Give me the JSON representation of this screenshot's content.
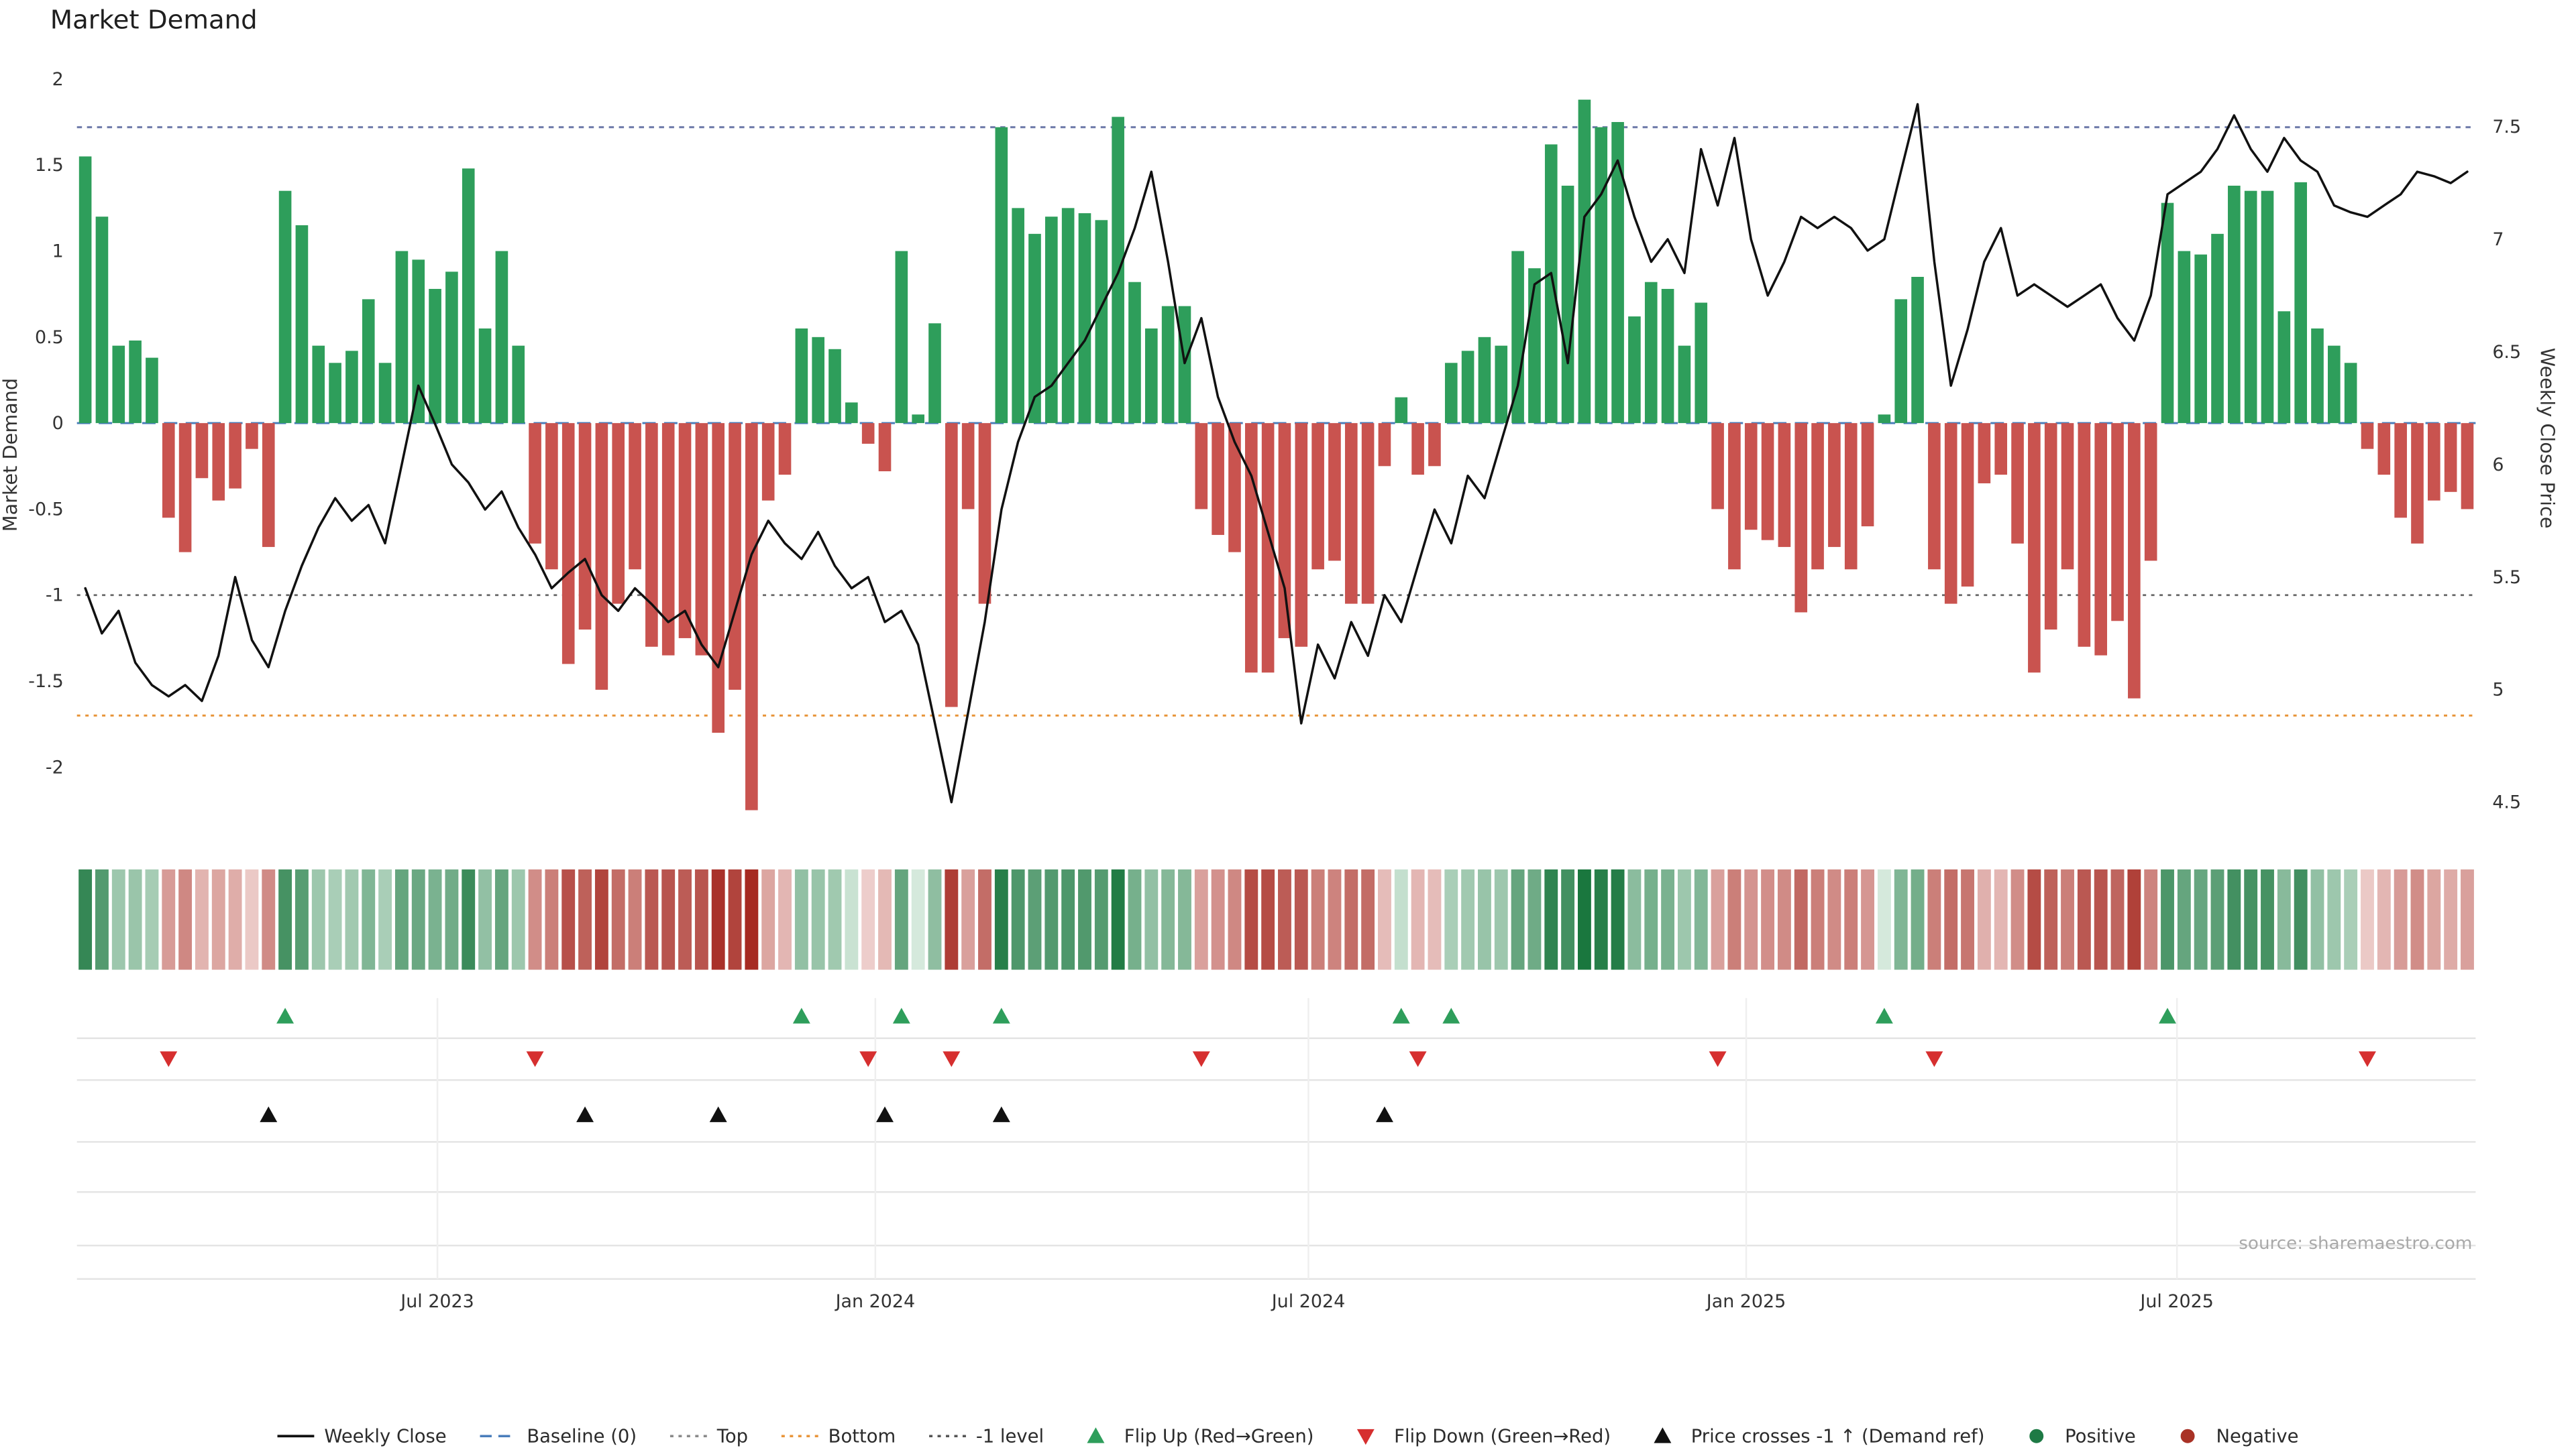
{
  "title": "Market Demand",
  "y_left_label": "Market Demand",
  "y_right_label": "Weekly Close Price",
  "source": "source: sharemaestro.com",
  "axes": {
    "left_ticks": [
      {
        "label": "2",
        "value": 2
      },
      {
        "label": "1.5",
        "value": 1.5
      },
      {
        "label": "1",
        "value": 1
      },
      {
        "label": "0.5",
        "value": 0.5
      },
      {
        "label": "0",
        "value": 0
      },
      {
        "label": "-0.5",
        "value": -0.5
      },
      {
        "label": "-1",
        "value": -1
      },
      {
        "label": "-1.5",
        "value": -1.5
      },
      {
        "label": "-2",
        "value": -2
      }
    ],
    "right_ticks": [
      {
        "label": "7.5",
        "value": 7.5
      },
      {
        "label": "7",
        "value": 7
      },
      {
        "label": "6.5",
        "value": 6.5
      },
      {
        "label": "6",
        "value": 6
      },
      {
        "label": "5.5",
        "value": 5.5
      },
      {
        "label": "5",
        "value": 5
      },
      {
        "label": "4.5",
        "value": 4.5
      }
    ],
    "x_ticks": [
      {
        "label": "Jul 2023",
        "index": 21.14
      },
      {
        "label": "Jan 2024",
        "index": 47.43
      },
      {
        "label": "Jul 2024",
        "index": 73.43
      },
      {
        "label": "Jan 2025",
        "index": 99.71
      },
      {
        "label": "Jul 2025",
        "index": 125.57
      }
    ]
  },
  "chart_data": {
    "type": "bar+line",
    "title": "Market Demand",
    "x_type": "weekly",
    "start_date": "2023-02-03",
    "n_weeks": 144,
    "ylim_left": [
      -2.4,
      2.05
    ],
    "ylim_right": [
      4.35,
      7.75
    ],
    "series": [
      {
        "name": "Market Demand",
        "type": "bar",
        "axis": "left",
        "values": [
          1.55,
          1.2,
          0.45,
          0.48,
          0.38,
          -0.55,
          -0.75,
          -0.32,
          -0.45,
          -0.38,
          -0.15,
          -0.72,
          1.35,
          1.15,
          0.45,
          0.35,
          0.42,
          0.72,
          0.35,
          1.0,
          0.95,
          0.78,
          0.88,
          1.48,
          0.55,
          1.0,
          0.45,
          -0.7,
          -0.85,
          -1.4,
          -1.2,
          -1.55,
          -1.05,
          -0.85,
          -1.3,
          -1.35,
          -1.25,
          -1.35,
          -1.8,
          -1.55,
          -2.25,
          -0.45,
          -0.3,
          0.55,
          0.5,
          0.43,
          0.12,
          -0.12,
          -0.28,
          1.0,
          0.05,
          0.58,
          -1.65,
          -0.5,
          -1.05,
          1.72,
          1.25,
          1.1,
          1.2,
          1.25,
          1.22,
          1.18,
          1.78,
          0.82,
          0.55,
          0.68,
          0.68,
          -0.5,
          -0.65,
          -0.75,
          -1.45,
          -1.45,
          -1.25,
          -1.3,
          -0.85,
          -0.8,
          -1.05,
          -1.05,
          -0.25,
          0.15,
          -0.3,
          -0.25,
          0.35,
          0.42,
          0.5,
          0.45,
          1.0,
          0.9,
          1.62,
          1.38,
          1.88,
          1.72,
          1.75,
          0.62,
          0.82,
          0.78,
          0.45,
          0.7,
          -0.5,
          -0.85,
          -0.62,
          -0.68,
          -0.72,
          -1.1,
          -0.85,
          -0.72,
          -0.85,
          -0.6,
          0.05,
          0.72,
          0.85,
          -0.85,
          -1.05,
          -0.95,
          -0.35,
          -0.3,
          -0.7,
          -1.45,
          -1.2,
          -0.85,
          -1.3,
          -1.35,
          -1.15,
          -1.6,
          -0.8,
          1.28,
          1.0,
          0.98,
          1.1,
          1.38,
          1.35,
          1.35,
          0.65,
          1.4,
          0.55,
          0.45,
          0.35,
          -0.15,
          -0.3,
          -0.55,
          -0.7,
          -0.45,
          -0.4,
          -0.5
        ]
      },
      {
        "name": "Weekly Close",
        "type": "line",
        "axis": "right",
        "values": [
          5.45,
          5.25,
          5.35,
          5.12,
          5.02,
          4.97,
          5.02,
          4.95,
          5.15,
          5.5,
          5.22,
          5.1,
          5.35,
          5.55,
          5.72,
          5.85,
          5.75,
          5.82,
          5.65,
          6.0,
          6.35,
          6.18,
          6.0,
          5.92,
          5.8,
          5.88,
          5.72,
          5.6,
          5.45,
          5.52,
          5.58,
          5.42,
          5.35,
          5.45,
          5.38,
          5.3,
          5.35,
          5.2,
          5.1,
          5.35,
          5.6,
          5.75,
          5.65,
          5.58,
          5.7,
          5.55,
          5.45,
          5.5,
          5.3,
          5.35,
          5.2,
          4.85,
          4.5,
          4.9,
          5.3,
          5.8,
          6.1,
          6.3,
          6.35,
          6.45,
          6.55,
          6.7,
          6.85,
          7.05,
          7.3,
          6.9,
          6.45,
          6.65,
          6.3,
          6.1,
          5.95,
          5.7,
          5.45,
          4.85,
          5.2,
          5.05,
          5.3,
          5.15,
          5.42,
          5.3,
          5.55,
          5.8,
          5.65,
          5.95,
          5.85,
          6.1,
          6.35,
          6.8,
          6.85,
          6.45,
          7.1,
          7.2,
          7.35,
          7.1,
          6.9,
          7.0,
          6.85,
          7.4,
          7.15,
          7.45,
          7.0,
          6.75,
          6.9,
          7.1,
          7.05,
          7.1,
          7.05,
          6.95,
          7.0,
          7.3,
          7.6,
          6.9,
          6.35,
          6.6,
          6.9,
          7.05,
          6.75,
          6.8,
          6.75,
          6.7,
          6.75,
          6.8,
          6.65,
          6.55,
          6.75,
          7.2,
          7.25,
          7.3,
          7.4,
          7.55,
          7.4,
          7.3,
          7.45,
          7.35,
          7.3,
          7.15,
          7.12,
          7.1,
          7.15,
          7.2,
          7.3,
          7.28,
          7.25,
          7.3
        ]
      }
    ],
    "levels": {
      "baseline": 0,
      "top": 1.72,
      "bottom": -1.7,
      "minus_one": -1
    },
    "markers": {
      "flip_up_indices": [
        12,
        43,
        49,
        55,
        79,
        82,
        108,
        125
      ],
      "flip_down_indices": [
        5,
        27,
        47,
        52,
        67,
        80,
        98,
        111,
        137
      ],
      "price_cross_indices": [
        11,
        30,
        38,
        48,
        55,
        78
      ]
    }
  },
  "legend": [
    {
      "label": "Weekly Close",
      "type": "line",
      "color": "#111111"
    },
    {
      "label": "Baseline (0)",
      "type": "dashed",
      "color": "#4a7ebb"
    },
    {
      "label": "Top",
      "type": "dotted",
      "color": "#8a8a8a"
    },
    {
      "label": "Bottom",
      "type": "dotted",
      "color": "#e8953a"
    },
    {
      "label": "-1 level",
      "type": "dotted",
      "color": "#555555"
    },
    {
      "label": "Flip Up (Red→Green)",
      "type": "triangle-up",
      "color": "#2e9e5b"
    },
    {
      "label": "Flip Down (Green→Red)",
      "type": "triangle-down",
      "color": "#d62f2f"
    },
    {
      "label": "Price crosses -1 ↑ (Demand ref)",
      "type": "triangle-up",
      "color": "#111111"
    },
    {
      "label": "Positive",
      "type": "dot",
      "color": "#1e7a45"
    },
    {
      "label": "Negative",
      "type": "dot",
      "color": "#a93226"
    }
  ],
  "colors": {
    "positive_bar": "#2e9e5b",
    "negative_bar": "#c9534f",
    "price_line": "#111111",
    "baseline_line": "#4a7ebb",
    "top_line": "#6c79a8",
    "bottom_line": "#e8953a",
    "minus_one_line": "#666666",
    "flip_up_marker": "#2e9e5b",
    "flip_down_marker": "#d62f2f",
    "price_cross_marker": "#111111"
  }
}
